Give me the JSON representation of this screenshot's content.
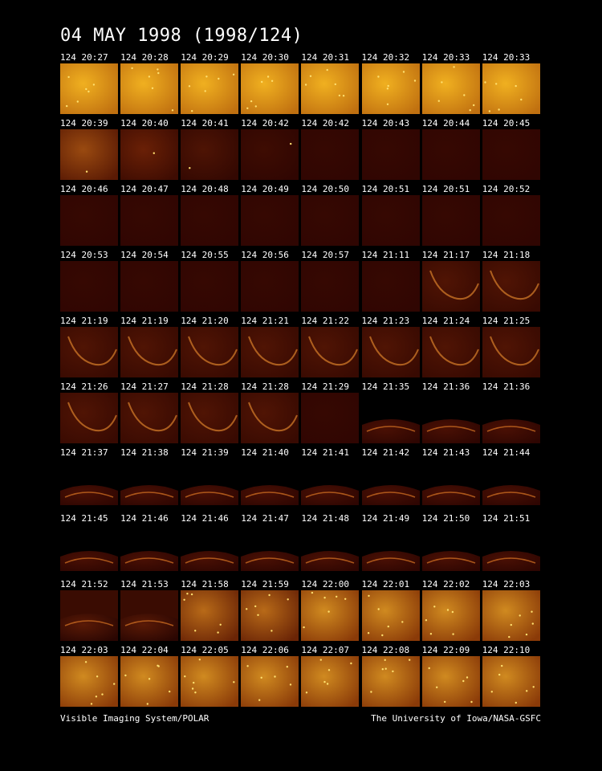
{
  "title": "04 MAY 1998  (1998/124)",
  "footer": {
    "left": "Visible Imaging System/POLAR",
    "right": "The University of Iowa/NASA-GSFC"
  },
  "frames": [
    {
      "label": "124 20:27",
      "kind": "bright"
    },
    {
      "label": "124 20:28",
      "kind": "bright"
    },
    {
      "label": "124 20:29",
      "kind": "bright"
    },
    {
      "label": "124 20:30",
      "kind": "bright"
    },
    {
      "label": "124 20:31",
      "kind": "bright"
    },
    {
      "label": "124 20:32",
      "kind": "bright"
    },
    {
      "label": "124 20:33",
      "kind": "bright"
    },
    {
      "label": "124 20:33",
      "kind": "bright"
    },
    {
      "label": "124 20:39",
      "kind": "fade1"
    },
    {
      "label": "124 20:40",
      "kind": "fade2"
    },
    {
      "label": "124 20:41",
      "kind": "fade3"
    },
    {
      "label": "124 20:42",
      "kind": "fade4"
    },
    {
      "label": "124 20:42",
      "kind": "dark"
    },
    {
      "label": "124 20:43",
      "kind": "dark"
    },
    {
      "label": "124 20:44",
      "kind": "dark"
    },
    {
      "label": "124 20:45",
      "kind": "dark"
    },
    {
      "label": "124 20:46",
      "kind": "dark"
    },
    {
      "label": "124 20:47",
      "kind": "dark"
    },
    {
      "label": "124 20:48",
      "kind": "dark"
    },
    {
      "label": "124 20:49",
      "kind": "dark"
    },
    {
      "label": "124 20:50",
      "kind": "dark"
    },
    {
      "label": "124 20:51",
      "kind": "dark"
    },
    {
      "label": "124 20:51",
      "kind": "dark"
    },
    {
      "label": "124 20:52",
      "kind": "dark"
    },
    {
      "label": "124 20:53",
      "kind": "dark"
    },
    {
      "label": "124 20:54",
      "kind": "dark"
    },
    {
      "label": "124 20:55",
      "kind": "dark"
    },
    {
      "label": "124 20:56",
      "kind": "dark"
    },
    {
      "label": "124 20:57",
      "kind": "dark"
    },
    {
      "label": "124 21:11",
      "kind": "dark"
    },
    {
      "label": "124 21:17",
      "kind": "arc"
    },
    {
      "label": "124 21:18",
      "kind": "arc"
    },
    {
      "label": "124 21:19",
      "kind": "arc"
    },
    {
      "label": "124 21:19",
      "kind": "arc"
    },
    {
      "label": "124 21:20",
      "kind": "arc"
    },
    {
      "label": "124 21:21",
      "kind": "arc"
    },
    {
      "label": "124 21:22",
      "kind": "arc"
    },
    {
      "label": "124 21:23",
      "kind": "arc"
    },
    {
      "label": "124 21:24",
      "kind": "arc"
    },
    {
      "label": "124 21:25",
      "kind": "arc"
    },
    {
      "label": "124 21:26",
      "kind": "arc"
    },
    {
      "label": "124 21:27",
      "kind": "arc"
    },
    {
      "label": "124 21:28",
      "kind": "arc"
    },
    {
      "label": "124 21:28",
      "kind": "arc"
    },
    {
      "label": "124 21:29",
      "kind": "dark"
    },
    {
      "label": "124 21:35",
      "kind": "limb"
    },
    {
      "label": "124 21:36",
      "kind": "limb"
    },
    {
      "label": "124 21:36",
      "kind": "limb"
    },
    {
      "label": "124 21:37",
      "kind": "limbsmall"
    },
    {
      "label": "124 21:38",
      "kind": "limbsmall"
    },
    {
      "label": "124 21:39",
      "kind": "limbsmall"
    },
    {
      "label": "124 21:40",
      "kind": "limbsmall"
    },
    {
      "label": "124 21:41",
      "kind": "limbsmall"
    },
    {
      "label": "124 21:42",
      "kind": "limbsmall"
    },
    {
      "label": "124 21:43",
      "kind": "limbsmall"
    },
    {
      "label": "124 21:44",
      "kind": "limbsmall"
    },
    {
      "label": "124 21:45",
      "kind": "limbsmall"
    },
    {
      "label": "124 21:46",
      "kind": "limbsmall"
    },
    {
      "label": "124 21:46",
      "kind": "limbsmall"
    },
    {
      "label": "124 21:47",
      "kind": "limbsmall"
    },
    {
      "label": "124 21:48",
      "kind": "limbsmall"
    },
    {
      "label": "124 21:49",
      "kind": "limbsmall"
    },
    {
      "label": "124 21:50",
      "kind": "limbsmall"
    },
    {
      "label": "124 21:51",
      "kind": "limbsmall"
    },
    {
      "label": "124 21:52",
      "kind": "limbglow"
    },
    {
      "label": "124 21:53",
      "kind": "limbglow"
    },
    {
      "label": "124 21:58",
      "kind": "mid"
    },
    {
      "label": "124 21:59",
      "kind": "mid"
    },
    {
      "label": "124 22:00",
      "kind": "bright2"
    },
    {
      "label": "124 22:01",
      "kind": "bright2"
    },
    {
      "label": "124 22:02",
      "kind": "bright2"
    },
    {
      "label": "124 22:03",
      "kind": "bright2"
    },
    {
      "label": "124 22:03",
      "kind": "bright2"
    },
    {
      "label": "124 22:04",
      "kind": "bright2"
    },
    {
      "label": "124 22:05",
      "kind": "bright2"
    },
    {
      "label": "124 22:06",
      "kind": "bright2"
    },
    {
      "label": "124 22:07",
      "kind": "bright2"
    },
    {
      "label": "124 22:08",
      "kind": "bright2"
    },
    {
      "label": "124 22:09",
      "kind": "bright2"
    },
    {
      "label": "124 22:10",
      "kind": "bright2"
    }
  ]
}
